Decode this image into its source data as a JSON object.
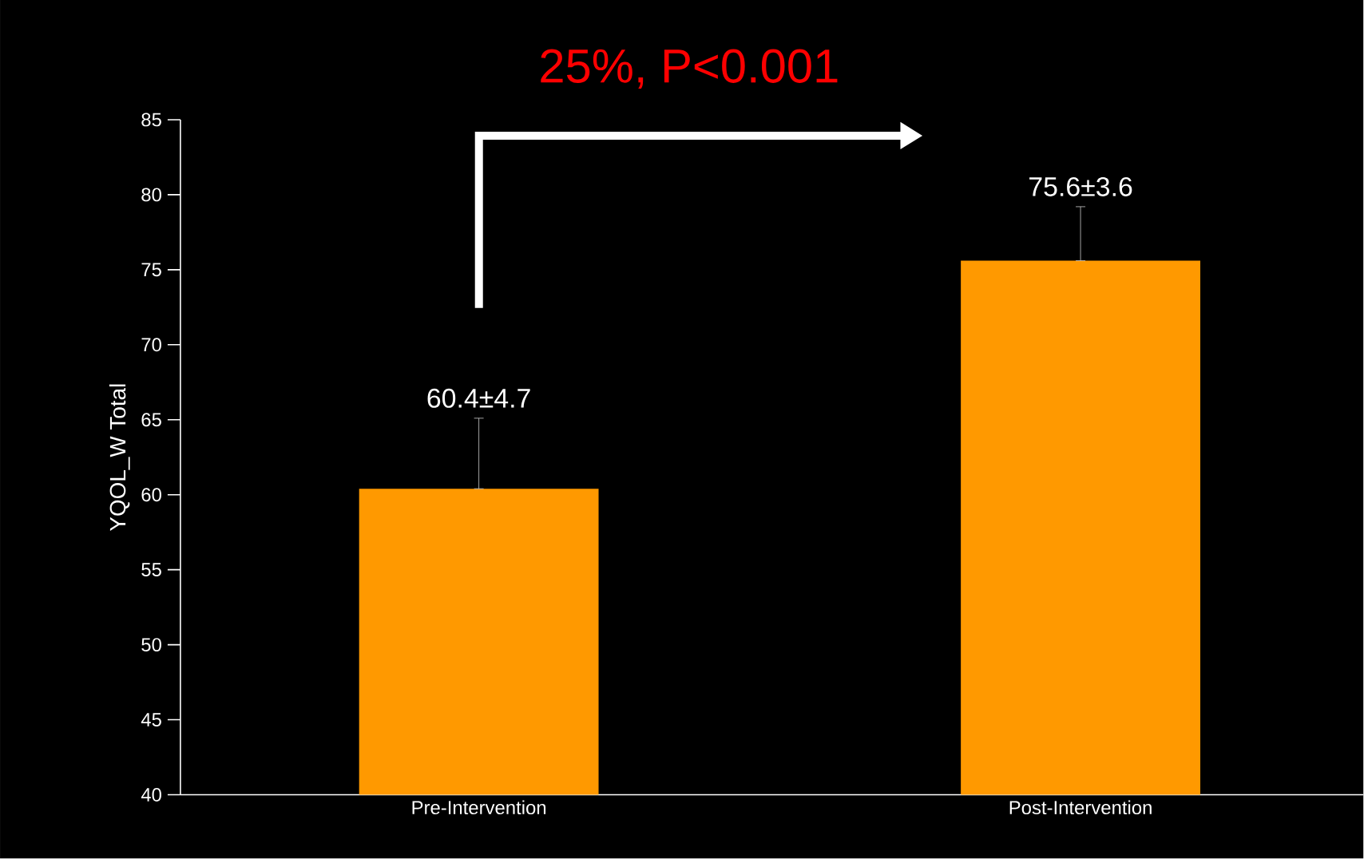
{
  "chart_data": {
    "type": "bar",
    "title": "25%, P<0.001",
    "ylabel": "YQOL_W Total",
    "categories": [
      "Pre-Intervention",
      "Post-Intervention"
    ],
    "values": [
      60.4,
      75.6
    ],
    "color": "#ff9900",
    "errors": [
      [
        60.4,
        65.1
      ],
      [
        75.6,
        79.2
      ]
    ],
    "value_labels": [
      "60.4±4.7",
      "75.6±3.6"
    ],
    "ylim": [
      40,
      85
    ],
    "yticks": [
      40,
      45,
      50,
      55,
      60,
      65,
      70,
      75,
      80,
      85
    ]
  }
}
